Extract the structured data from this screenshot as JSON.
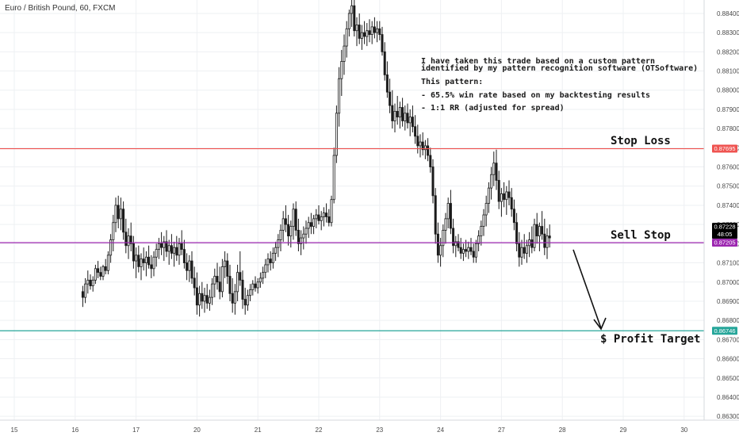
{
  "title": "Euro / British Pound, 60, FXCM",
  "annotation": {
    "lines": [
      "I have taken this trade based on a custom pattern",
      "identified by my pattern recognition software (OTSoftware)",
      "This pattern:",
      "- 65.5% win rate based on my backtesting results",
      "- 1:1 RR (adjusted for spread)"
    ]
  },
  "levels": [
    {
      "name": "Stop Loss",
      "label": "Stop Loss",
      "price": 0.87695,
      "price_label": "0.87695",
      "color": "#ef5350"
    },
    {
      "name": "Sell Stop",
      "label": "Sell Stop",
      "price": 0.87205,
      "price_label": "0.87205",
      "color": "#9c27b0"
    },
    {
      "name": "Profit Target",
      "label": "$ Profit Target",
      "price": 0.86746,
      "price_label": "0.86746",
      "color": "#26a69a"
    }
  ],
  "current_price": {
    "price": 0.87228,
    "label": "0.87228",
    "countdown": "48:05",
    "color": "#000000"
  },
  "colors": {
    "up": "#1a1a1a",
    "down": "#1a1a1a",
    "grid": "#eef0f3",
    "axis_text": "#4a4a4a"
  },
  "chart_data": {
    "type": "candlestick",
    "title": "Euro / British Pound, 60, FXCM",
    "ylim": [
      0.8628,
      0.8847
    ],
    "y_ticks": [
      "0.88400",
      "0.88300",
      "0.88200",
      "0.88100",
      "0.88000",
      "0.87900",
      "0.87800",
      "0.87700",
      "0.87600",
      "0.87500",
      "0.87400",
      "0.87300",
      "0.87200",
      "0.87100",
      "0.87000",
      "0.86900",
      "0.86800",
      "0.86700",
      "0.86600",
      "0.86500",
      "0.86400",
      "0.86300"
    ],
    "x_ticks": [
      "15",
      "16",
      "17",
      "20",
      "21",
      "22",
      "23",
      "24",
      "27",
      "28",
      "29",
      "30"
    ],
    "x_tick_slots": [
      0,
      24,
      48,
      72,
      96,
      120,
      144,
      168,
      192,
      216,
      240,
      264
    ],
    "grid": true,
    "last_bar_slot": 211,
    "bars_ohlc": [
      [
        0.8695,
        0.8698,
        0.8687,
        0.8692
      ],
      [
        0.8692,
        0.8702,
        0.8689,
        0.8699
      ],
      [
        0.8699,
        0.8706,
        0.8694,
        0.8701
      ],
      [
        0.8701,
        0.8704,
        0.8696,
        0.8698
      ],
      [
        0.8698,
        0.8703,
        0.8695,
        0.8701
      ],
      [
        0.8701,
        0.8709,
        0.8699,
        0.8707
      ],
      [
        0.8707,
        0.8711,
        0.8702,
        0.8705
      ],
      [
        0.8705,
        0.8708,
        0.8701,
        0.8703
      ],
      [
        0.8703,
        0.8709,
        0.8701,
        0.8708
      ],
      [
        0.8708,
        0.8712,
        0.8704,
        0.8706
      ],
      [
        0.8706,
        0.8716,
        0.8704,
        0.8714
      ],
      [
        0.8714,
        0.8725,
        0.871,
        0.8722
      ],
      [
        0.8722,
        0.8735,
        0.8716,
        0.8731
      ],
      [
        0.8731,
        0.8744,
        0.8726,
        0.874
      ],
      [
        0.874,
        0.8745,
        0.8728,
        0.8733
      ],
      [
        0.8733,
        0.8744,
        0.8727,
        0.8738
      ],
      [
        0.8738,
        0.8742,
        0.8722,
        0.8726
      ],
      [
        0.8726,
        0.8733,
        0.8715,
        0.8719
      ],
      [
        0.8719,
        0.8728,
        0.8712,
        0.8724
      ],
      [
        0.8724,
        0.8731,
        0.8716,
        0.872
      ],
      [
        0.872,
        0.8724,
        0.8707,
        0.8711
      ],
      [
        0.8711,
        0.8718,
        0.8702,
        0.8714
      ],
      [
        0.8714,
        0.8719,
        0.8705,
        0.8708
      ],
      [
        0.8708,
        0.8715,
        0.8701,
        0.8712
      ],
      [
        0.8712,
        0.8718,
        0.8706,
        0.871
      ],
      [
        0.871,
        0.8716,
        0.8703,
        0.8713
      ],
      [
        0.8713,
        0.8719,
        0.8707,
        0.8709
      ],
      [
        0.8709,
        0.8714,
        0.8702,
        0.8707
      ],
      [
        0.8707,
        0.8716,
        0.8703,
        0.8713
      ],
      [
        0.8713,
        0.872,
        0.8708,
        0.8717
      ],
      [
        0.8717,
        0.8723,
        0.8712,
        0.872
      ],
      [
        0.872,
        0.8726,
        0.8714,
        0.8718
      ],
      [
        0.8718,
        0.8724,
        0.8711,
        0.8721
      ],
      [
        0.8721,
        0.8727,
        0.8713,
        0.8716
      ],
      [
        0.8716,
        0.8722,
        0.8709,
        0.8719
      ],
      [
        0.8719,
        0.8725,
        0.8712,
        0.8715
      ],
      [
        0.8715,
        0.8721,
        0.8708,
        0.8718
      ],
      [
        0.8718,
        0.8724,
        0.8711,
        0.8714
      ],
      [
        0.8714,
        0.8723,
        0.8709,
        0.872
      ],
      [
        0.872,
        0.8727,
        0.8714,
        0.8717
      ],
      [
        0.8717,
        0.8722,
        0.8707,
        0.871
      ],
      [
        0.871,
        0.8715,
        0.8701,
        0.8706
      ],
      [
        0.8706,
        0.8714,
        0.87,
        0.8711
      ],
      [
        0.8711,
        0.8716,
        0.8699,
        0.8702
      ],
      [
        0.8702,
        0.8708,
        0.8693,
        0.8697
      ],
      [
        0.8697,
        0.8705,
        0.8683,
        0.8688
      ],
      [
        0.8688,
        0.8698,
        0.8682,
        0.8694
      ],
      [
        0.8694,
        0.87,
        0.8686,
        0.869
      ],
      [
        0.869,
        0.8697,
        0.8684,
        0.8693
      ],
      [
        0.8693,
        0.8699,
        0.8686,
        0.8689
      ],
      [
        0.8689,
        0.8696,
        0.8685,
        0.8692
      ],
      [
        0.8692,
        0.8702,
        0.8688,
        0.8699
      ],
      [
        0.8699,
        0.8707,
        0.8692,
        0.8703
      ],
      [
        0.8703,
        0.871,
        0.8696,
        0.87
      ],
      [
        0.87,
        0.8708,
        0.8691,
        0.8695
      ],
      [
        0.8695,
        0.8712,
        0.8692,
        0.8708
      ],
      [
        0.8708,
        0.8716,
        0.8702,
        0.8711
      ],
      [
        0.8711,
        0.8715,
        0.8699,
        0.8703
      ],
      [
        0.8703,
        0.8709,
        0.869,
        0.8694
      ],
      [
        0.8694,
        0.8702,
        0.8684,
        0.8689
      ],
      [
        0.8689,
        0.8699,
        0.8683,
        0.8695
      ],
      [
        0.8695,
        0.8709,
        0.869,
        0.8705
      ],
      [
        0.8705,
        0.8716,
        0.8698,
        0.8701
      ],
      [
        0.8701,
        0.8706,
        0.8686,
        0.8691
      ],
      [
        0.8691,
        0.8697,
        0.8683,
        0.8688
      ],
      [
        0.8688,
        0.8696,
        0.8685,
        0.8693
      ],
      [
        0.8693,
        0.8699,
        0.869,
        0.8696
      ],
      [
        0.8696,
        0.8701,
        0.8693,
        0.8699
      ],
      [
        0.8699,
        0.8703,
        0.8695,
        0.8697
      ],
      [
        0.8697,
        0.8702,
        0.8694,
        0.87
      ],
      [
        0.87,
        0.8705,
        0.8697,
        0.8702
      ],
      [
        0.8702,
        0.8708,
        0.8699,
        0.8705
      ],
      [
        0.8705,
        0.8712,
        0.8702,
        0.8709
      ],
      [
        0.8709,
        0.8715,
        0.8705,
        0.8712
      ],
      [
        0.8712,
        0.8716,
        0.8706,
        0.871
      ],
      [
        0.871,
        0.8718,
        0.8707,
        0.8715
      ],
      [
        0.8715,
        0.8721,
        0.8711,
        0.8718
      ],
      [
        0.8718,
        0.8725,
        0.8713,
        0.8722
      ],
      [
        0.8722,
        0.873,
        0.8716,
        0.8727
      ],
      [
        0.8727,
        0.8737,
        0.8721,
        0.8733
      ],
      [
        0.8733,
        0.874,
        0.8726,
        0.873
      ],
      [
        0.873,
        0.8735,
        0.8719,
        0.8724
      ],
      [
        0.8724,
        0.8732,
        0.8718,
        0.8729
      ],
      [
        0.8729,
        0.8741,
        0.8722,
        0.8738
      ],
      [
        0.8738,
        0.8742,
        0.8724,
        0.8727
      ],
      [
        0.8727,
        0.8733,
        0.8716,
        0.872
      ],
      [
        0.872,
        0.8727,
        0.8714,
        0.8723
      ],
      [
        0.8723,
        0.8729,
        0.8717,
        0.8725
      ],
      [
        0.8725,
        0.8732,
        0.872,
        0.8728
      ],
      [
        0.8728,
        0.8734,
        0.8723,
        0.8731
      ],
      [
        0.8731,
        0.8736,
        0.8725,
        0.8729
      ],
      [
        0.8729,
        0.8735,
        0.8725,
        0.8733
      ],
      [
        0.8733,
        0.8738,
        0.8728,
        0.8735
      ],
      [
        0.8735,
        0.874,
        0.873,
        0.8732
      ],
      [
        0.8732,
        0.8737,
        0.8727,
        0.8734
      ],
      [
        0.8734,
        0.8739,
        0.8729,
        0.8736
      ],
      [
        0.8736,
        0.8741,
        0.8731,
        0.8734
      ],
      [
        0.8734,
        0.8738,
        0.8729,
        0.8731
      ],
      [
        0.8731,
        0.8745,
        0.8729,
        0.8743
      ],
      [
        0.8743,
        0.877,
        0.8741,
        0.8766
      ],
      [
        0.8766,
        0.8792,
        0.8762,
        0.8788
      ],
      [
        0.8788,
        0.8812,
        0.8781,
        0.8806
      ],
      [
        0.8806,
        0.8821,
        0.8797,
        0.8815
      ],
      [
        0.8815,
        0.8829,
        0.8808,
        0.8823
      ],
      [
        0.8823,
        0.8836,
        0.8817,
        0.8832
      ],
      [
        0.8832,
        0.8842,
        0.8828,
        0.884
      ],
      [
        0.884,
        0.8849,
        0.8833,
        0.8844
      ],
      [
        0.8844,
        0.8849,
        0.8828,
        0.8831
      ],
      [
        0.8831,
        0.8838,
        0.8823,
        0.8834
      ],
      [
        0.8834,
        0.884,
        0.8824,
        0.8827
      ],
      [
        0.8827,
        0.8834,
        0.8821,
        0.883
      ],
      [
        0.883,
        0.8836,
        0.8824,
        0.8828
      ],
      [
        0.8828,
        0.8835,
        0.8823,
        0.8831
      ],
      [
        0.8831,
        0.8837,
        0.8825,
        0.8829
      ],
      [
        0.8829,
        0.8836,
        0.8824,
        0.8833
      ],
      [
        0.8833,
        0.8838,
        0.8827,
        0.883
      ],
      [
        0.883,
        0.8836,
        0.8825,
        0.8832
      ],
      [
        0.8832,
        0.8836,
        0.8826,
        0.8829
      ],
      [
        0.8829,
        0.8833,
        0.8818,
        0.882
      ],
      [
        0.882,
        0.8825,
        0.8805,
        0.8808
      ],
      [
        0.8808,
        0.8815,
        0.8796,
        0.8799
      ],
      [
        0.8799,
        0.8806,
        0.8788,
        0.8792
      ],
      [
        0.8792,
        0.88,
        0.878,
        0.8784
      ],
      [
        0.8784,
        0.8793,
        0.8778,
        0.8789
      ],
      [
        0.8789,
        0.8797,
        0.8782,
        0.8786
      ],
      [
        0.8786,
        0.8794,
        0.878,
        0.8791
      ],
      [
        0.8791,
        0.8796,
        0.8781,
        0.8784
      ],
      [
        0.8784,
        0.8792,
        0.8779,
        0.8788
      ],
      [
        0.8788,
        0.8793,
        0.878,
        0.8783
      ],
      [
        0.8783,
        0.879,
        0.8776,
        0.8786
      ],
      [
        0.8786,
        0.8792,
        0.8778,
        0.8781
      ],
      [
        0.8781,
        0.8787,
        0.8772,
        0.8776
      ],
      [
        0.8776,
        0.8782,
        0.8767,
        0.8771
      ],
      [
        0.8771,
        0.8777,
        0.8765,
        0.8773
      ],
      [
        0.8773,
        0.8778,
        0.8766,
        0.8769
      ],
      [
        0.8769,
        0.8774,
        0.8764,
        0.8771
      ],
      [
        0.8771,
        0.8775,
        0.8763,
        0.8766
      ],
      [
        0.8766,
        0.877,
        0.8757,
        0.876
      ],
      [
        0.876,
        0.8764,
        0.8741,
        0.8745
      ],
      [
        0.8745,
        0.8749,
        0.872,
        0.8725
      ],
      [
        0.8725,
        0.8731,
        0.871,
        0.8714
      ],
      [
        0.8714,
        0.8723,
        0.8708,
        0.8719
      ],
      [
        0.8719,
        0.873,
        0.8713,
        0.8727
      ],
      [
        0.8727,
        0.8736,
        0.872,
        0.8733
      ],
      [
        0.8733,
        0.8744,
        0.8728,
        0.8741
      ],
      [
        0.8741,
        0.8748,
        0.8725,
        0.8728
      ],
      [
        0.8728,
        0.8733,
        0.8715,
        0.8719
      ],
      [
        0.8719,
        0.8724,
        0.8713,
        0.8721
      ],
      [
        0.8721,
        0.8725,
        0.8716,
        0.8718
      ],
      [
        0.8718,
        0.8723,
        0.8712,
        0.8715
      ],
      [
        0.8715,
        0.872,
        0.8711,
        0.8717
      ],
      [
        0.8717,
        0.8722,
        0.8713,
        0.8716
      ],
      [
        0.8716,
        0.8721,
        0.8712,
        0.8718
      ],
      [
        0.8718,
        0.8723,
        0.8714,
        0.8716
      ],
      [
        0.8716,
        0.872,
        0.871,
        0.8713
      ],
      [
        0.8713,
        0.8722,
        0.871,
        0.872
      ],
      [
        0.872,
        0.8727,
        0.8716,
        0.8724
      ],
      [
        0.8724,
        0.8732,
        0.8719,
        0.8729
      ],
      [
        0.8729,
        0.8738,
        0.8724,
        0.8735
      ],
      [
        0.8735,
        0.8745,
        0.8729,
        0.8741
      ],
      [
        0.8741,
        0.8752,
        0.8736,
        0.8749
      ],
      [
        0.8749,
        0.876,
        0.8743,
        0.8756
      ],
      [
        0.8756,
        0.8768,
        0.875,
        0.8762
      ],
      [
        0.8762,
        0.8769,
        0.8748,
        0.8753
      ],
      [
        0.8753,
        0.8758,
        0.8738,
        0.8742
      ],
      [
        0.8742,
        0.8749,
        0.8734,
        0.8746
      ],
      [
        0.8746,
        0.8752,
        0.8739,
        0.8743
      ],
      [
        0.8743,
        0.875,
        0.8735,
        0.8747
      ],
      [
        0.8747,
        0.8753,
        0.874,
        0.8744
      ],
      [
        0.8744,
        0.8749,
        0.8734,
        0.8738
      ],
      [
        0.8738,
        0.8743,
        0.8727,
        0.8731
      ],
      [
        0.8731,
        0.8736,
        0.8716,
        0.872
      ],
      [
        0.872,
        0.8726,
        0.8708,
        0.8713
      ],
      [
        0.8713,
        0.8722,
        0.8709,
        0.8718
      ],
      [
        0.8718,
        0.8725,
        0.8712,
        0.8715
      ],
      [
        0.8715,
        0.8722,
        0.871,
        0.8719
      ],
      [
        0.8719,
        0.8726,
        0.8713,
        0.8722
      ],
      [
        0.8722,
        0.8729,
        0.8715,
        0.8718
      ],
      [
        0.8718,
        0.8733,
        0.8716,
        0.873
      ],
      [
        0.873,
        0.8736,
        0.872,
        0.8724
      ],
      [
        0.8724,
        0.8731,
        0.8716,
        0.8729
      ],
      [
        0.8729,
        0.8737,
        0.8722,
        0.8725
      ],
      [
        0.8725,
        0.8733,
        0.8714,
        0.8718
      ],
      [
        0.8718,
        0.8728,
        0.8712,
        0.8724
      ],
      [
        0.8724,
        0.873,
        0.8718,
        0.8723
      ]
    ]
  }
}
